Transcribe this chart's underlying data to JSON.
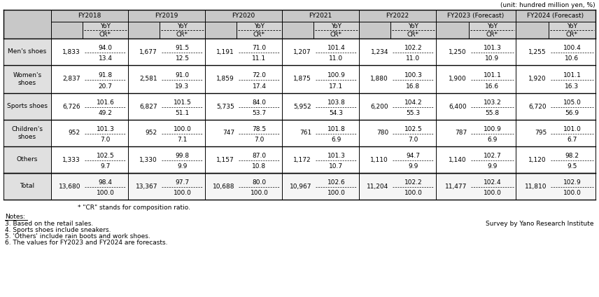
{
  "unit_label": "(unit: hundred million yen, %)",
  "col_headers": [
    "FY2018",
    "FY2019",
    "FY2020",
    "FY2021",
    "FY2022",
    "FY2023 (Forecast)",
    "FY2024 (Forecast)"
  ],
  "rows": [
    {
      "label": "Men's shoes",
      "data": [
        [
          1833,
          94.0,
          13.4
        ],
        [
          1677,
          91.5,
          12.5
        ],
        [
          1191,
          71.0,
          11.1
        ],
        [
          1207,
          101.4,
          11.0
        ],
        [
          1234,
          102.2,
          11.0
        ],
        [
          1250,
          101.3,
          10.9
        ],
        [
          1255,
          100.4,
          10.6
        ]
      ]
    },
    {
      "label": "Women's\nshoes",
      "data": [
        [
          2837,
          91.8,
          20.7
        ],
        [
          2581,
          91.0,
          19.3
        ],
        [
          1859,
          72.0,
          17.4
        ],
        [
          1875,
          100.9,
          17.1
        ],
        [
          1880,
          100.3,
          16.8
        ],
        [
          1900,
          101.1,
          16.6
        ],
        [
          1920,
          101.1,
          16.3
        ]
      ]
    },
    {
      "label": "Sports shoes",
      "data": [
        [
          6726,
          101.6,
          49.2
        ],
        [
          6827,
          101.5,
          51.1
        ],
        [
          5735,
          84.0,
          53.7
        ],
        [
          5952,
          103.8,
          54.3
        ],
        [
          6200,
          104.2,
          55.3
        ],
        [
          6400,
          103.2,
          55.8
        ],
        [
          6720,
          105.0,
          56.9
        ]
      ]
    },
    {
      "label": "Children's\nshoes",
      "data": [
        [
          952,
          101.3,
          7.0
        ],
        [
          952,
          100.0,
          7.1
        ],
        [
          747,
          78.5,
          7.0
        ],
        [
          761,
          101.8,
          6.9
        ],
        [
          780,
          102.5,
          7.0
        ],
        [
          787,
          100.9,
          6.9
        ],
        [
          795,
          101.0,
          6.7
        ]
      ]
    },
    {
      "label": "Others",
      "data": [
        [
          1333,
          102.5,
          9.7
        ],
        [
          1330,
          99.8,
          9.9
        ],
        [
          1157,
          87.0,
          10.8
        ],
        [
          1172,
          101.3,
          10.7
        ],
        [
          1110,
          94.7,
          9.9
        ],
        [
          1140,
          102.7,
          9.9
        ],
        [
          1120,
          98.2,
          9.5
        ]
      ]
    },
    {
      "label": "Total",
      "data": [
        [
          13680,
          98.4,
          100.0
        ],
        [
          13367,
          97.7,
          100.0
        ],
        [
          10688,
          80.0,
          100.0
        ],
        [
          10967,
          102.6,
          100.0
        ],
        [
          11204,
          102.2,
          100.0
        ],
        [
          11477,
          102.4,
          100.0
        ],
        [
          11810,
          102.9,
          100.0
        ]
      ]
    }
  ],
  "footnote_star": "* \"CR\" stands for composition ratio.",
  "notes": [
    "Notes:",
    "3. Based on the retail sales.",
    "4. Sports shoes include sneakers.",
    "5. 'Others' include rain boots and work shoes.",
    "6. The values for FY2023 and FY2024 are forecasts."
  ],
  "survey": "Survey by Yano Research Institute",
  "bg_header": "#c8c8c8",
  "bg_label": "#e0e0e0",
  "bg_white": "#ffffff",
  "bg_total_val": "#f5f5f5",
  "border_color": "#000000"
}
